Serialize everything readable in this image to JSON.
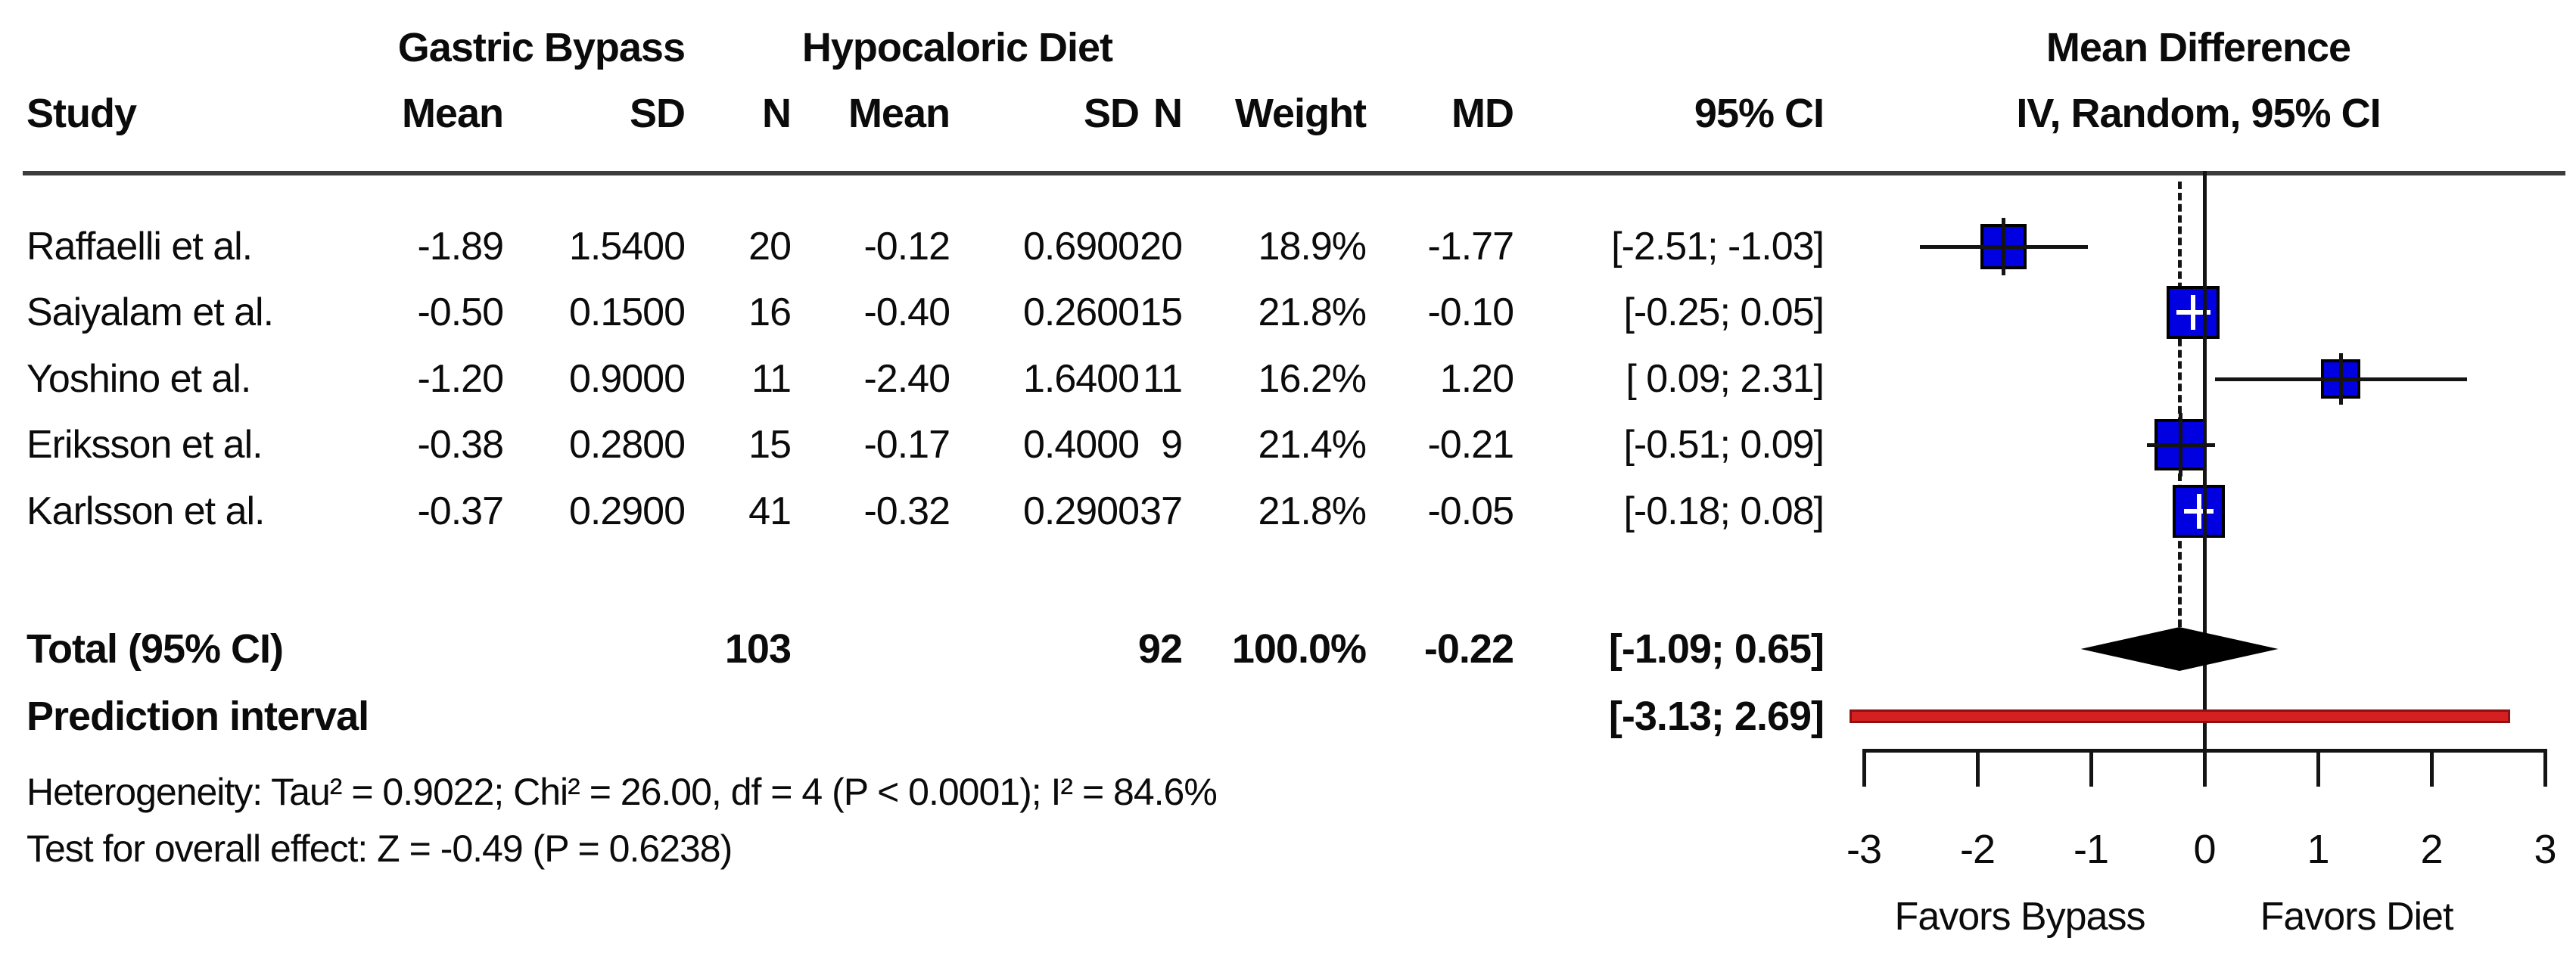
{
  "header": {
    "study": "Study",
    "group1": "Gastric Bypass",
    "group2": "Hypocaloric Diet",
    "cols": [
      "Mean",
      "SD",
      "N",
      "Mean",
      "SD",
      "N",
      "Weight",
      "MD",
      "95% CI"
    ],
    "effect_title_line1": "Mean Difference",
    "effect_title_line2": "IV, Random, 95% CI"
  },
  "chart_data": {
    "type": "forest",
    "effect_measure": "Mean Difference",
    "model": "IV, Random, 95% CI",
    "studies": [
      {
        "name": "Raffaelli et al.",
        "mean1": "-1.89",
        "sd1": "1.5400",
        "n1": "20",
        "mean2": "-0.12",
        "sd2": "0.6900",
        "n2": "20",
        "weight": "18.9%",
        "weight_pct": 18.9,
        "md": -1.77,
        "md_label": "-1.77",
        "ci_low": -2.51,
        "ci_high": -1.03,
        "ci_label": "[-2.51; -1.03]"
      },
      {
        "name": "Saiyalam et al.",
        "mean1": "-0.50",
        "sd1": "0.1500",
        "n1": "16",
        "mean2": "-0.40",
        "sd2": "0.2600",
        "n2": "15",
        "weight": "21.8%",
        "weight_pct": 21.8,
        "md": -0.1,
        "md_label": "-0.10",
        "ci_low": -0.25,
        "ci_high": 0.05,
        "ci_label": "[-0.25;  0.05]"
      },
      {
        "name": "Yoshino et al.",
        "mean1": "-1.20",
        "sd1": "0.9000",
        "n1": "11",
        "mean2": "-2.40",
        "sd2": "1.6400",
        "n2": "11",
        "weight": "16.2%",
        "weight_pct": 16.2,
        "md": 1.2,
        "md_label": "1.20",
        "ci_low": 0.09,
        "ci_high": 2.31,
        "ci_label": "[ 0.09;  2.31]"
      },
      {
        "name": "Eriksson et al.",
        "mean1": "-0.38",
        "sd1": "0.2800",
        "n1": "15",
        "mean2": "-0.17",
        "sd2": "0.4000",
        "n2": "9",
        "weight": "21.4%",
        "weight_pct": 21.4,
        "md": -0.21,
        "md_label": "-0.21",
        "ci_low": -0.51,
        "ci_high": 0.09,
        "ci_label": "[-0.51;  0.09]"
      },
      {
        "name": "Karlsson et al.",
        "mean1": "-0.37",
        "sd1": "0.2900",
        "n1": "41",
        "mean2": "-0.32",
        "sd2": "0.2900",
        "n2": "37",
        "weight": "21.8%",
        "weight_pct": 21.8,
        "md": -0.05,
        "md_label": "-0.05",
        "ci_low": -0.18,
        "ci_high": 0.08,
        "ci_label": "[-0.18;  0.08]"
      }
    ],
    "total": {
      "label": "Total (95% CI)",
      "n1": "103",
      "n2": "92",
      "weight": "100.0%",
      "md": -0.22,
      "md_label": "-0.22",
      "ci_low": -1.09,
      "ci_high": 0.65,
      "ci_label": "[-1.09;  0.65]"
    },
    "prediction": {
      "label": "Prediction interval",
      "ci_low": -3.13,
      "ci_high": 2.69,
      "ci_label": "[-3.13;  2.69]"
    },
    "footnotes": [
      "Heterogeneity: Tau² = 0.9022; Chi² = 26.00, df = 4 (P < 0.0001); I² = 84.6%",
      "Test for overall effect: Z = -0.49 (P = 0.6238)"
    ],
    "axis": {
      "xlim": [
        -3,
        3
      ],
      "ticks": [
        -3,
        -2,
        -1,
        0,
        1,
        2,
        3
      ],
      "zero_line": 0,
      "pooled_dashed_line": -0.22,
      "favors_left": "Favors Bypass",
      "favors_right": "Favors Diet"
    },
    "colors": {
      "square": "#0000e0",
      "square_border": "#000000",
      "diamond": "#000000",
      "prediction_bar": "#d42020",
      "prediction_bar_border": "#8f1010",
      "lines": "#141414"
    }
  }
}
